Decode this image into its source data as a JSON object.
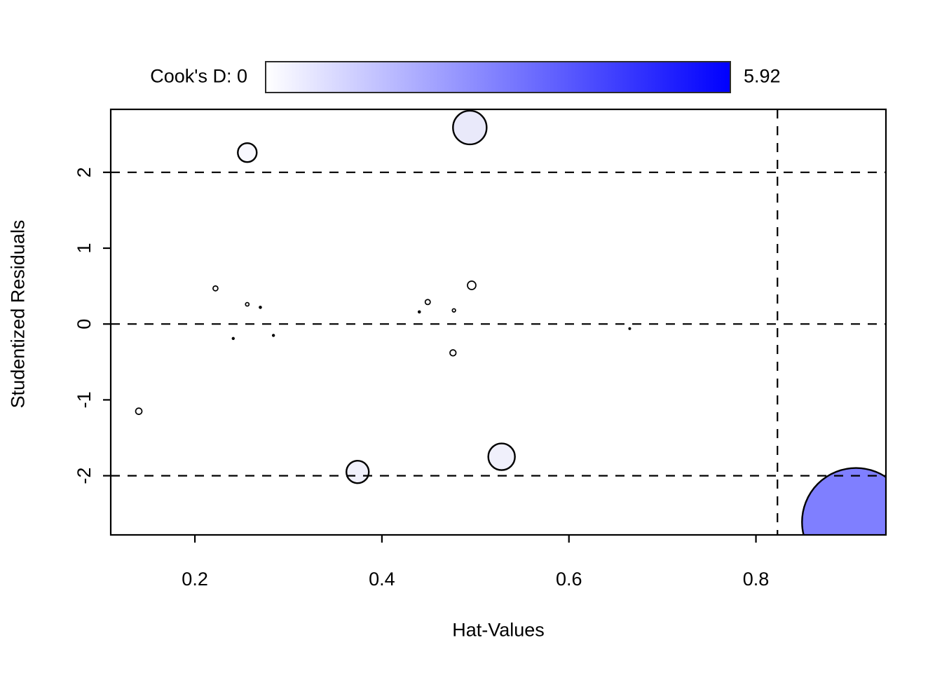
{
  "legend": {
    "label": "Cook's D: 0",
    "max_label": "5.92",
    "gradient_start": "#FFFFFF",
    "gradient_end": "#0000FE"
  },
  "chart_data": {
    "type": "scatter",
    "xlabel": "Hat-Values",
    "ylabel": "Studentized Residuals",
    "xlim": [
      0.11,
      0.939
    ],
    "ylim": [
      -2.78,
      2.83
    ],
    "x_ticks": [
      0.2,
      0.4,
      0.6,
      0.8
    ],
    "y_ticks": [
      -2,
      -1,
      0,
      1,
      2
    ],
    "grid": false,
    "reference_line_style": "dashed",
    "h_reference_lines": [
      -2,
      0,
      2
    ],
    "v_reference_lines": [
      0.823
    ],
    "color_scale": {
      "label": "Cook's D",
      "min": 0,
      "max": 5.92,
      "min_color": "#FFFFFF",
      "max_color": "#0000FE"
    },
    "points": [
      {
        "hat": 0.14,
        "resid": -1.15,
        "radius_px": 4.5,
        "fill": "#FFFFFF"
      },
      {
        "hat": 0.222,
        "resid": 0.47,
        "radius_px": 3.5,
        "fill": "#FFFFFF"
      },
      {
        "hat": 0.241,
        "resid": -0.19,
        "radius_px": 1.8,
        "fill": "#000000"
      },
      {
        "hat": 0.256,
        "resid": 0.26,
        "radius_px": 2.5,
        "fill": "#FFFFFF"
      },
      {
        "hat": 0.256,
        "resid": 2.26,
        "radius_px": 13.5,
        "fill": "#F8F8FE"
      },
      {
        "hat": 0.27,
        "resid": 0.22,
        "radius_px": 1.9,
        "fill": "#000000"
      },
      {
        "hat": 0.284,
        "resid": -0.15,
        "radius_px": 1.8,
        "fill": "#000000"
      },
      {
        "hat": 0.374,
        "resid": -1.95,
        "radius_px": 16,
        "fill": "#F0F0FB"
      },
      {
        "hat": 0.44,
        "resid": 0.16,
        "radius_px": 1.9,
        "fill": "#000000"
      },
      {
        "hat": 0.449,
        "resid": 0.29,
        "radius_px": 3.6,
        "fill": "#FFFFFF"
      },
      {
        "hat": 0.476,
        "resid": -0.38,
        "radius_px": 4.3,
        "fill": "#FFFFFF"
      },
      {
        "hat": 0.477,
        "resid": 0.18,
        "radius_px": 2.3,
        "fill": "#FFFFFF"
      },
      {
        "hat": 0.494,
        "resid": 2.59,
        "radius_px": 24,
        "fill": "#E9E9FA"
      },
      {
        "hat": 0.496,
        "resid": 0.51,
        "radius_px": 6,
        "fill": "#FFFFFF"
      },
      {
        "hat": 0.528,
        "resid": -1.75,
        "radius_px": 19,
        "fill": "#F0F0FB"
      },
      {
        "hat": 0.665,
        "resid": -0.06,
        "radius_px": 1.6,
        "fill": "#000000"
      },
      {
        "hat": 0.907,
        "resid": -2.61,
        "radius_px": 77,
        "fill": "#7F7FFF"
      }
    ]
  }
}
